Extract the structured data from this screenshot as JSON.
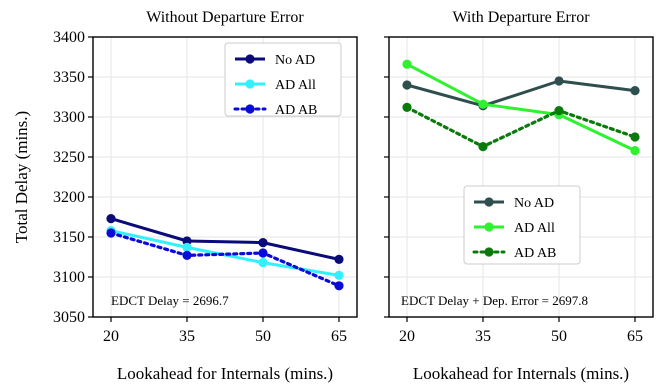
{
  "chart_data": [
    {
      "type": "line",
      "title": "Without Departure Error",
      "xlabel": "Lookahead for Internals (mins.)",
      "ylabel": "Total Delay (mins.)",
      "x": [
        20,
        35,
        50,
        65
      ],
      "xticks": [
        "20",
        "35",
        "50",
        "65"
      ],
      "ylim": [
        3050,
        3400
      ],
      "yticks": [
        "3050",
        "3100",
        "3150",
        "3200",
        "3250",
        "3300",
        "3350",
        "3400"
      ],
      "grid": true,
      "legend_position": "top-right",
      "annotation": "EDCT Delay = 2696.7",
      "series": [
        {
          "name": "No AD",
          "values": [
            3173,
            3145,
            3143,
            3122
          ],
          "color": "#0a0a78",
          "style": "solid"
        },
        {
          "name": "AD All",
          "values": [
            3158,
            3137,
            3118,
            3102
          ],
          "color": "#33f0ff",
          "style": "solid"
        },
        {
          "name": "AD AB",
          "values": [
            3155,
            3127,
            3130,
            3089
          ],
          "color": "#0b0bd8",
          "style": "dotted"
        }
      ]
    },
    {
      "type": "line",
      "title": "With Departure Error",
      "xlabel": "Lookahead for Internals (mins.)",
      "ylabel": "",
      "x": [
        20,
        35,
        50,
        65
      ],
      "xticks": [
        "20",
        "35",
        "50",
        "65"
      ],
      "ylim": [
        3050,
        3400
      ],
      "grid": true,
      "legend_position": "bottom-center",
      "annotation": "EDCT Delay + Dep. Error = 2697.8",
      "series": [
        {
          "name": "No AD",
          "values": [
            3340,
            3314,
            3345,
            3333
          ],
          "color": "#2f4f4f",
          "style": "solid"
        },
        {
          "name": "AD All",
          "values": [
            3366,
            3316,
            3303,
            3258
          ],
          "color": "#2df22d",
          "style": "solid"
        },
        {
          "name": "AD AB",
          "values": [
            3312,
            3263,
            3308,
            3275
          ],
          "color": "#0a7a0a",
          "style": "dotted"
        }
      ]
    }
  ]
}
